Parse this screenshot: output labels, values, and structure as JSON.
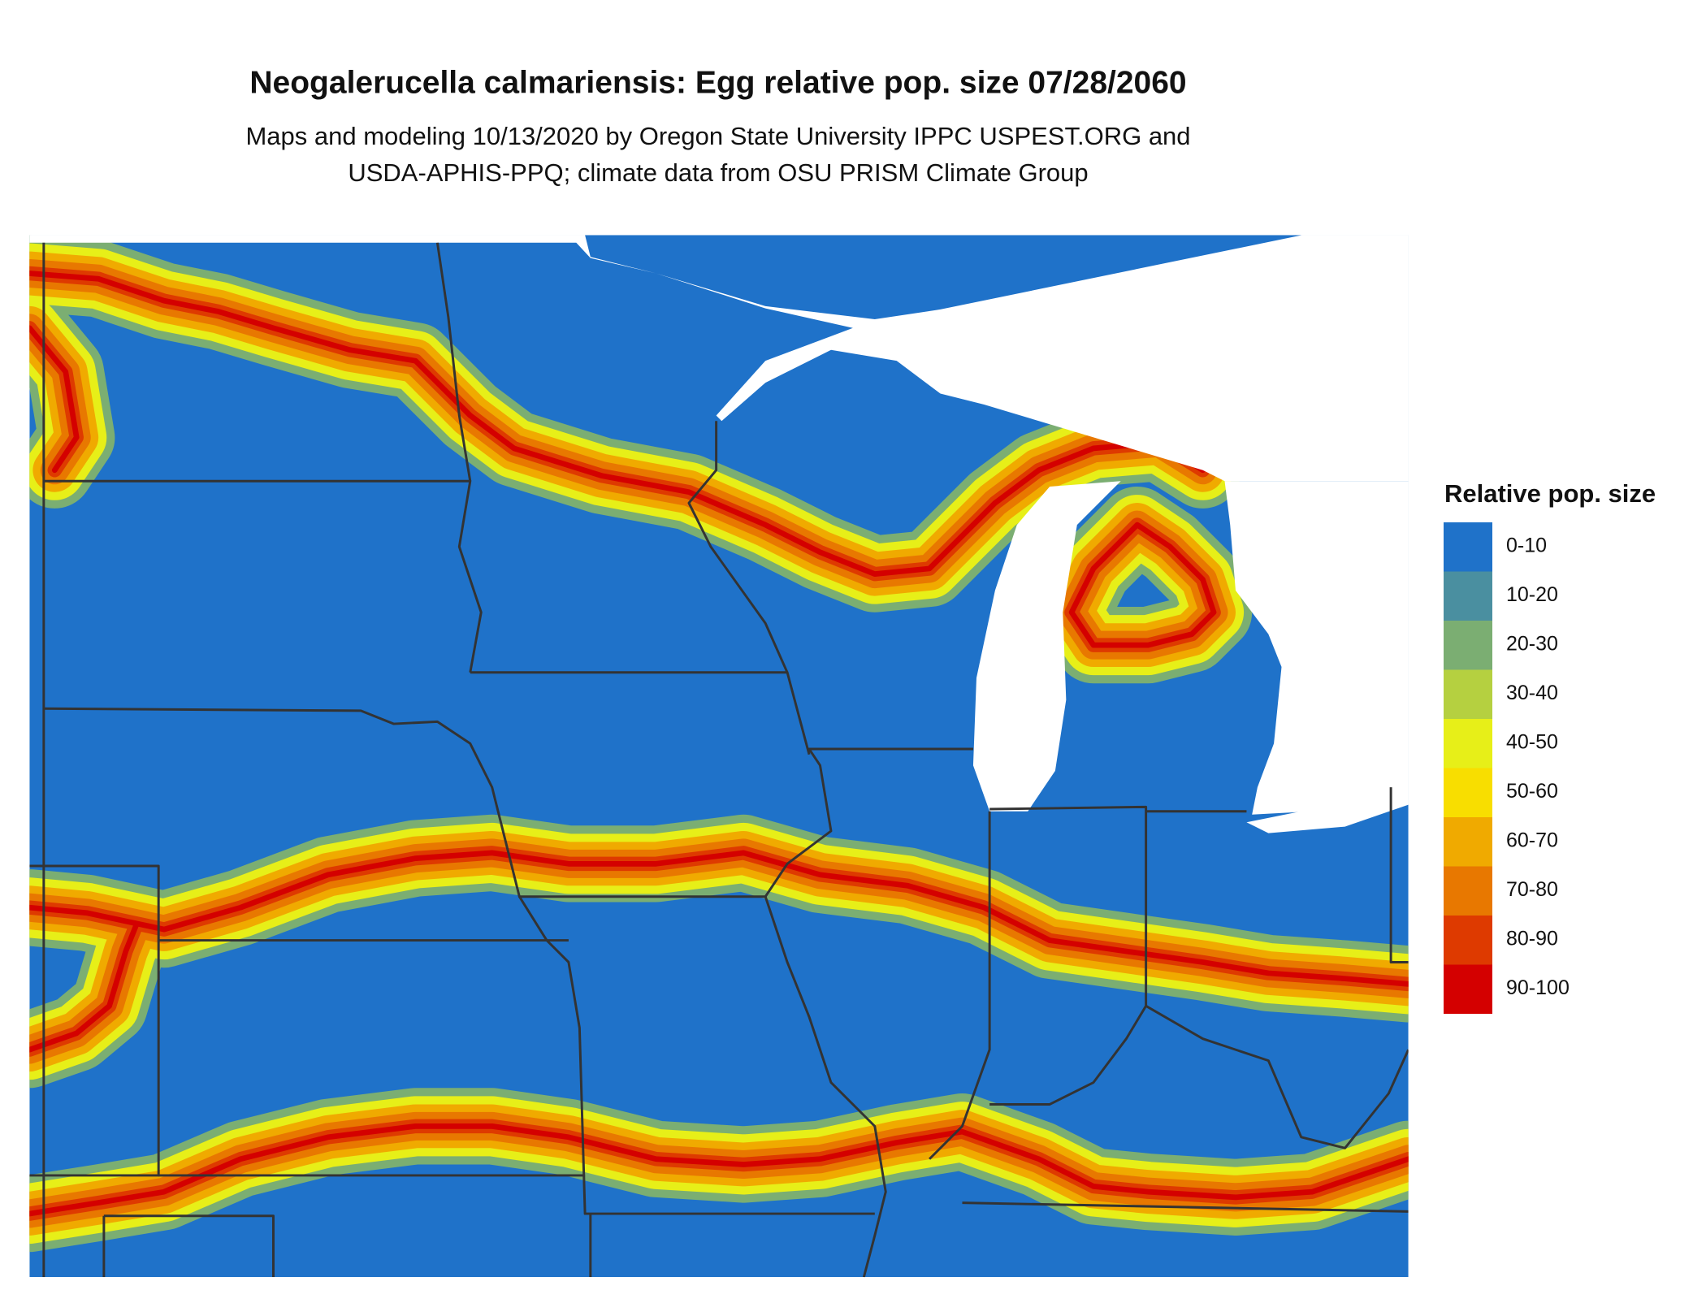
{
  "title": "Neogalerucella calmariensis: Egg relative pop. size 07/28/2060",
  "subtitle": [
    "Maps and modeling 10/13/2020 by Oregon State University IPPC USPEST.ORG and",
    "USDA-APHIS-PPQ; climate data from OSU PRISM Climate Group"
  ],
  "legend": {
    "title": "Relative pop. size",
    "items": [
      {
        "label": "0-10",
        "color": "#1f72c9"
      },
      {
        "label": "10-20",
        "color": "#4a8fa0"
      },
      {
        "label": "20-30",
        "color": "#7bae72"
      },
      {
        "label": "30-40",
        "color": "#b5d040"
      },
      {
        "label": "40-50",
        "color": "#e7ef18"
      },
      {
        "label": "50-60",
        "color": "#f8de00"
      },
      {
        "label": "60-70",
        "color": "#f0aa00"
      },
      {
        "label": "70-80",
        "color": "#e87800"
      },
      {
        "label": "80-90",
        "color": "#de3a00"
      },
      {
        "label": "90-100",
        "color": "#d40000"
      }
    ]
  }
}
